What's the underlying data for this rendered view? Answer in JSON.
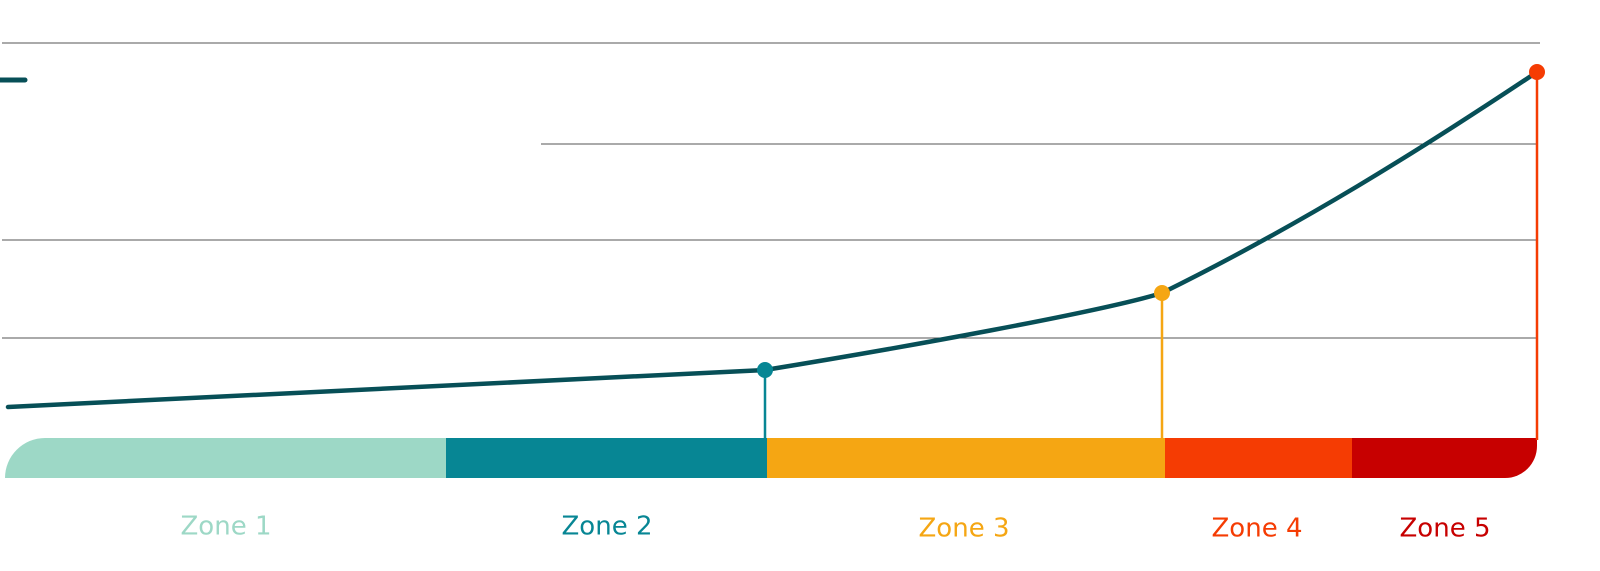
{
  "zones": [
    {
      "label": "Zone 1"
    },
    {
      "label": "Zone 2"
    },
    {
      "label": "Zone 3"
    },
    {
      "label": "Zone 4"
    },
    {
      "label": "Zone 5"
    }
  ]
}
